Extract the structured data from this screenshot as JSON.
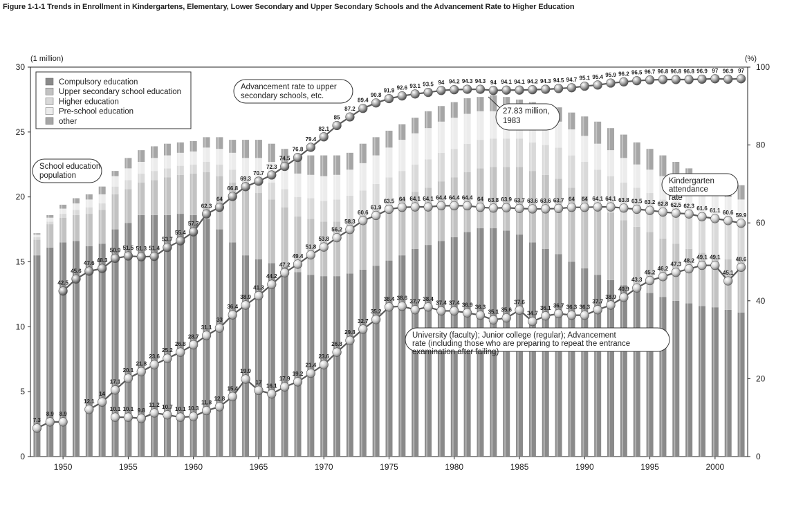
{
  "figure_title": "Figure 1-1-1   Trends in Enrollment in Kindergartens, Elementary, Lower Secondary and Upper Secondary Schools and the Advancement Rate to Higher Education",
  "chart_data": {
    "type": "bar",
    "title": "Figure 1-1-1   Trends in Enrollment in Kindergartens, Elementary, Lower Secondary and Upper Secondary Schools and the Advancement Rate to Higher Education",
    "y_left_unit": "(1 million)",
    "y_right_unit": "(%)",
    "y_left_ticks": [
      "0",
      "5",
      "10",
      "15",
      "20",
      "25",
      "30"
    ],
    "y_right_ticks": [
      "0",
      "20",
      "40",
      "60",
      "80",
      "100"
    ],
    "ylim_left": [
      0,
      30
    ],
    "ylim_right": [
      0,
      100
    ],
    "x_ticks": [
      "1950",
      "1955",
      "1960",
      "1965",
      "1970",
      "1975",
      "1980",
      "1985",
      "1990",
      "1995",
      "2000"
    ],
    "years": [
      1948,
      1949,
      1950,
      1951,
      1952,
      1953,
      1954,
      1955,
      1956,
      1957,
      1958,
      1959,
      1960,
      1961,
      1962,
      1963,
      1964,
      1965,
      1966,
      1967,
      1968,
      1969,
      1970,
      1971,
      1972,
      1973,
      1974,
      1975,
      1976,
      1977,
      1978,
      1979,
      1980,
      1981,
      1982,
      1983,
      1984,
      1985,
      1986,
      1987,
      1988,
      1989,
      1990,
      1991,
      1992,
      1993,
      1994,
      1995,
      1996,
      1997,
      1998,
      1999,
      2000,
      2001,
      2002
    ],
    "legend": {
      "placement": "top-left",
      "items": [
        "Compulsory education",
        "Upper secondary school education",
        "Higher education",
        "Pre-school education",
        "other"
      ]
    },
    "series_colors": {
      "compulsory": "#8a8a8a",
      "upper_secondary": "#c2c2c2",
      "higher": "#d9d9d9",
      "preschool": "#ececec",
      "other": "#a6a6a6"
    },
    "bar_series": {
      "total": [
        17.2,
        18.6,
        19.4,
        19.9,
        20.2,
        20.8,
        22.0,
        23.0,
        23.6,
        23.9,
        24.1,
        24.2,
        24.3,
        24.6,
        24.6,
        24.4,
        24.4,
        24.4,
        24.1,
        23.7,
        23.3,
        23.2,
        23.2,
        23.2,
        23.4,
        24.1,
        24.6,
        25.1,
        25.6,
        26.1,
        26.6,
        27.0,
        27.3,
        27.6,
        27.7,
        27.83,
        27.7,
        27.5,
        27.3,
        27.1,
        26.9,
        26.5,
        26.2,
        25.8,
        25.3,
        24.8,
        24.2,
        23.7,
        23.2,
        22.7,
        22.2,
        21.8,
        21.4,
        21.2,
        20.9
      ],
      "compulsory": [
        15.5,
        16.1,
        16.5,
        16.6,
        16.2,
        16.4,
        17.5,
        18.0,
        18.6,
        18.6,
        18.6,
        18.7,
        18.6,
        18.3,
        17.5,
        16.5,
        15.5,
        15.2,
        14.9,
        14.6,
        14.2,
        14.0,
        13.9,
        13.9,
        14.1,
        14.4,
        14.7,
        15.1,
        15.5,
        16.0,
        16.3,
        16.6,
        16.9,
        17.3,
        17.6,
        17.6,
        17.4,
        17.1,
        16.5,
        16.0,
        15.6,
        15.0,
        14.5,
        14.0,
        13.6,
        13.2,
        12.9,
        12.6,
        12.3,
        12.0,
        11.8,
        11.6,
        11.5,
        11.3,
        11.1
      ],
      "upper_secondary": [
        1.2,
        1.8,
        1.9,
        2.0,
        2.5,
        2.6,
        2.7,
        2.6,
        2.5,
        2.7,
        2.9,
        3.0,
        3.2,
        3.6,
        4.1,
        4.6,
        5.0,
        5.1,
        4.9,
        4.6,
        4.3,
        4.3,
        4.2,
        4.2,
        4.2,
        4.2,
        4.3,
        4.3,
        4.4,
        4.4,
        4.4,
        4.6,
        4.6,
        4.6,
        4.6,
        4.7,
        4.9,
        5.2,
        5.5,
        5.7,
        5.8,
        5.7,
        5.6,
        5.4,
        5.2,
        5.0,
        4.8,
        4.7,
        4.5,
        4.4,
        4.2,
        4.1,
        4.0,
        3.9,
        3.9
      ],
      "higher": [
        0.2,
        0.2,
        0.3,
        0.4,
        0.5,
        0.5,
        0.6,
        0.7,
        0.7,
        0.7,
        0.7,
        0.7,
        0.7,
        0.8,
        0.9,
        1.0,
        1.1,
        1.2,
        1.3,
        1.4,
        1.5,
        1.6,
        1.6,
        1.7,
        1.8,
        1.9,
        2.0,
        2.1,
        2.1,
        2.1,
        2.2,
        2.2,
        2.2,
        2.2,
        2.2,
        2.2,
        2.2,
        2.2,
        2.2,
        2.3,
        2.4,
        2.5,
        2.6,
        2.7,
        2.8,
        2.9,
        3.0,
        3.0,
        3.0,
        3.0,
        3.0,
        3.0,
        3.0,
        3.0,
        3.0
      ],
      "preschool": [
        0.2,
        0.3,
        0.4,
        0.5,
        0.6,
        0.7,
        0.8,
        0.9,
        0.9,
        1.0,
        1.0,
        1.0,
        1.0,
        1.1,
        1.2,
        1.3,
        1.4,
        1.5,
        1.6,
        1.7,
        1.8,
        1.8,
        1.9,
        1.9,
        2.0,
        2.1,
        2.2,
        2.3,
        2.4,
        2.4,
        2.4,
        2.4,
        2.4,
        2.3,
        2.2,
        2.1,
        2.0,
        2.0,
        2.0,
        2.0,
        2.0,
        2.0,
        2.0,
        2.0,
        2.0,
        1.9,
        1.8,
        1.8,
        1.8,
        1.8,
        1.8,
        1.8,
        1.7,
        1.8,
        1.8
      ],
      "other": [
        0.1,
        0.2,
        0.3,
        0.4,
        0.4,
        0.6,
        0.4,
        0.8,
        0.9,
        0.9,
        0.9,
        0.8,
        0.8,
        0.8,
        0.9,
        1.0,
        1.4,
        1.4,
        1.4,
        1.4,
        1.5,
        1.5,
        1.6,
        1.5,
        1.3,
        1.5,
        1.4,
        1.3,
        1.2,
        1.2,
        1.3,
        1.2,
        1.2,
        1.2,
        1.1,
        1.23,
        1.2,
        1.0,
        1.1,
        1.1,
        1.1,
        1.3,
        1.5,
        1.7,
        1.7,
        1.8,
        1.7,
        1.6,
        1.6,
        1.5,
        1.4,
        1.3,
        1.2,
        1.2,
        1.1
      ]
    },
    "line_series": [
      {
        "name": "Advancement rate to upper secondary schools, etc.",
        "start_year": 1950,
        "values": [
          42.5,
          45.6,
          47.6,
          48.3,
          50.9,
          51.5,
          51.3,
          51.4,
          53.7,
          55.4,
          57.7,
          62.3,
          64.0,
          66.8,
          69.3,
          70.7,
          72.3,
          74.5,
          76.8,
          79.4,
          82.1,
          85.0,
          87.2,
          89.4,
          90.8,
          91.9,
          92.6,
          93.1,
          93.5,
          94.0,
          94.2,
          94.3,
          94.3,
          94.0,
          94.1,
          94.1,
          94.2,
          94.3,
          94.5,
          94.7,
          95.1,
          95.4,
          95.9,
          96.2,
          96.5,
          96.7,
          96.8,
          96.8,
          96.8,
          96.9,
          97.0,
          96.9,
          97.0
        ]
      },
      {
        "name": "Kindergarten attendance rate",
        "start_year": 1948,
        "values": [
          7.3,
          8.9,
          8.9,
          null,
          12.1,
          14.0,
          17.1,
          20.1,
          21.8,
          23.6,
          25.2,
          26.8,
          28.7,
          31.1,
          33.0,
          36.4,
          38.9,
          41.3,
          44.2,
          47.2,
          49.4,
          51.8,
          53.8,
          56.2,
          58.3,
          60.6,
          61.9,
          63.5,
          64.0,
          64.1,
          64.1,
          64.4,
          64.4,
          64.4,
          64.0,
          63.8,
          63.9,
          63.7,
          63.6,
          63.6,
          63.7,
          64.0,
          64.0,
          64.1,
          64.1,
          63.8,
          63.5,
          63.2,
          62.8,
          62.5,
          62.3,
          61.6,
          61.1,
          60.6,
          59.9
        ]
      },
      {
        "name": "University (faculty); Junior college (regular); Advancement rate (including those who are preparing to repeat the entrance examination after failing)",
        "start_year": 1952,
        "values": [
          null,
          null,
          10.1,
          10.1,
          9.8,
          11.2,
          10.7,
          10.1,
          10.3,
          11.8,
          12.8,
          15.4,
          19.9,
          17.0,
          16.1,
          17.9,
          19.2,
          21.4,
          23.6,
          26.8,
          29.8,
          32.7,
          35.2,
          38.4,
          38.6,
          37.7,
          38.4,
          37.4,
          37.4,
          36.9,
          36.3,
          35.1,
          35.6,
          37.6,
          34.7,
          36.1,
          36.7,
          36.3,
          36.3,
          37.7,
          38.9,
          40.9,
          43.3,
          45.2,
          46.2,
          47.3,
          48.2,
          49.1,
          49.1,
          45.1,
          48.6
        ]
      }
    ],
    "annotations": {
      "school_population": "School education population",
      "advancement_upper": "Advancement rate to upper secondary schools, etc.",
      "peak": "27.83 million, 1983",
      "kindergarten": "Kindergarten attendance rate",
      "university": "University (faculty); Junior college (regular); Advancement rate (including those who are preparing to repeat the entrance examination after failing)"
    }
  }
}
